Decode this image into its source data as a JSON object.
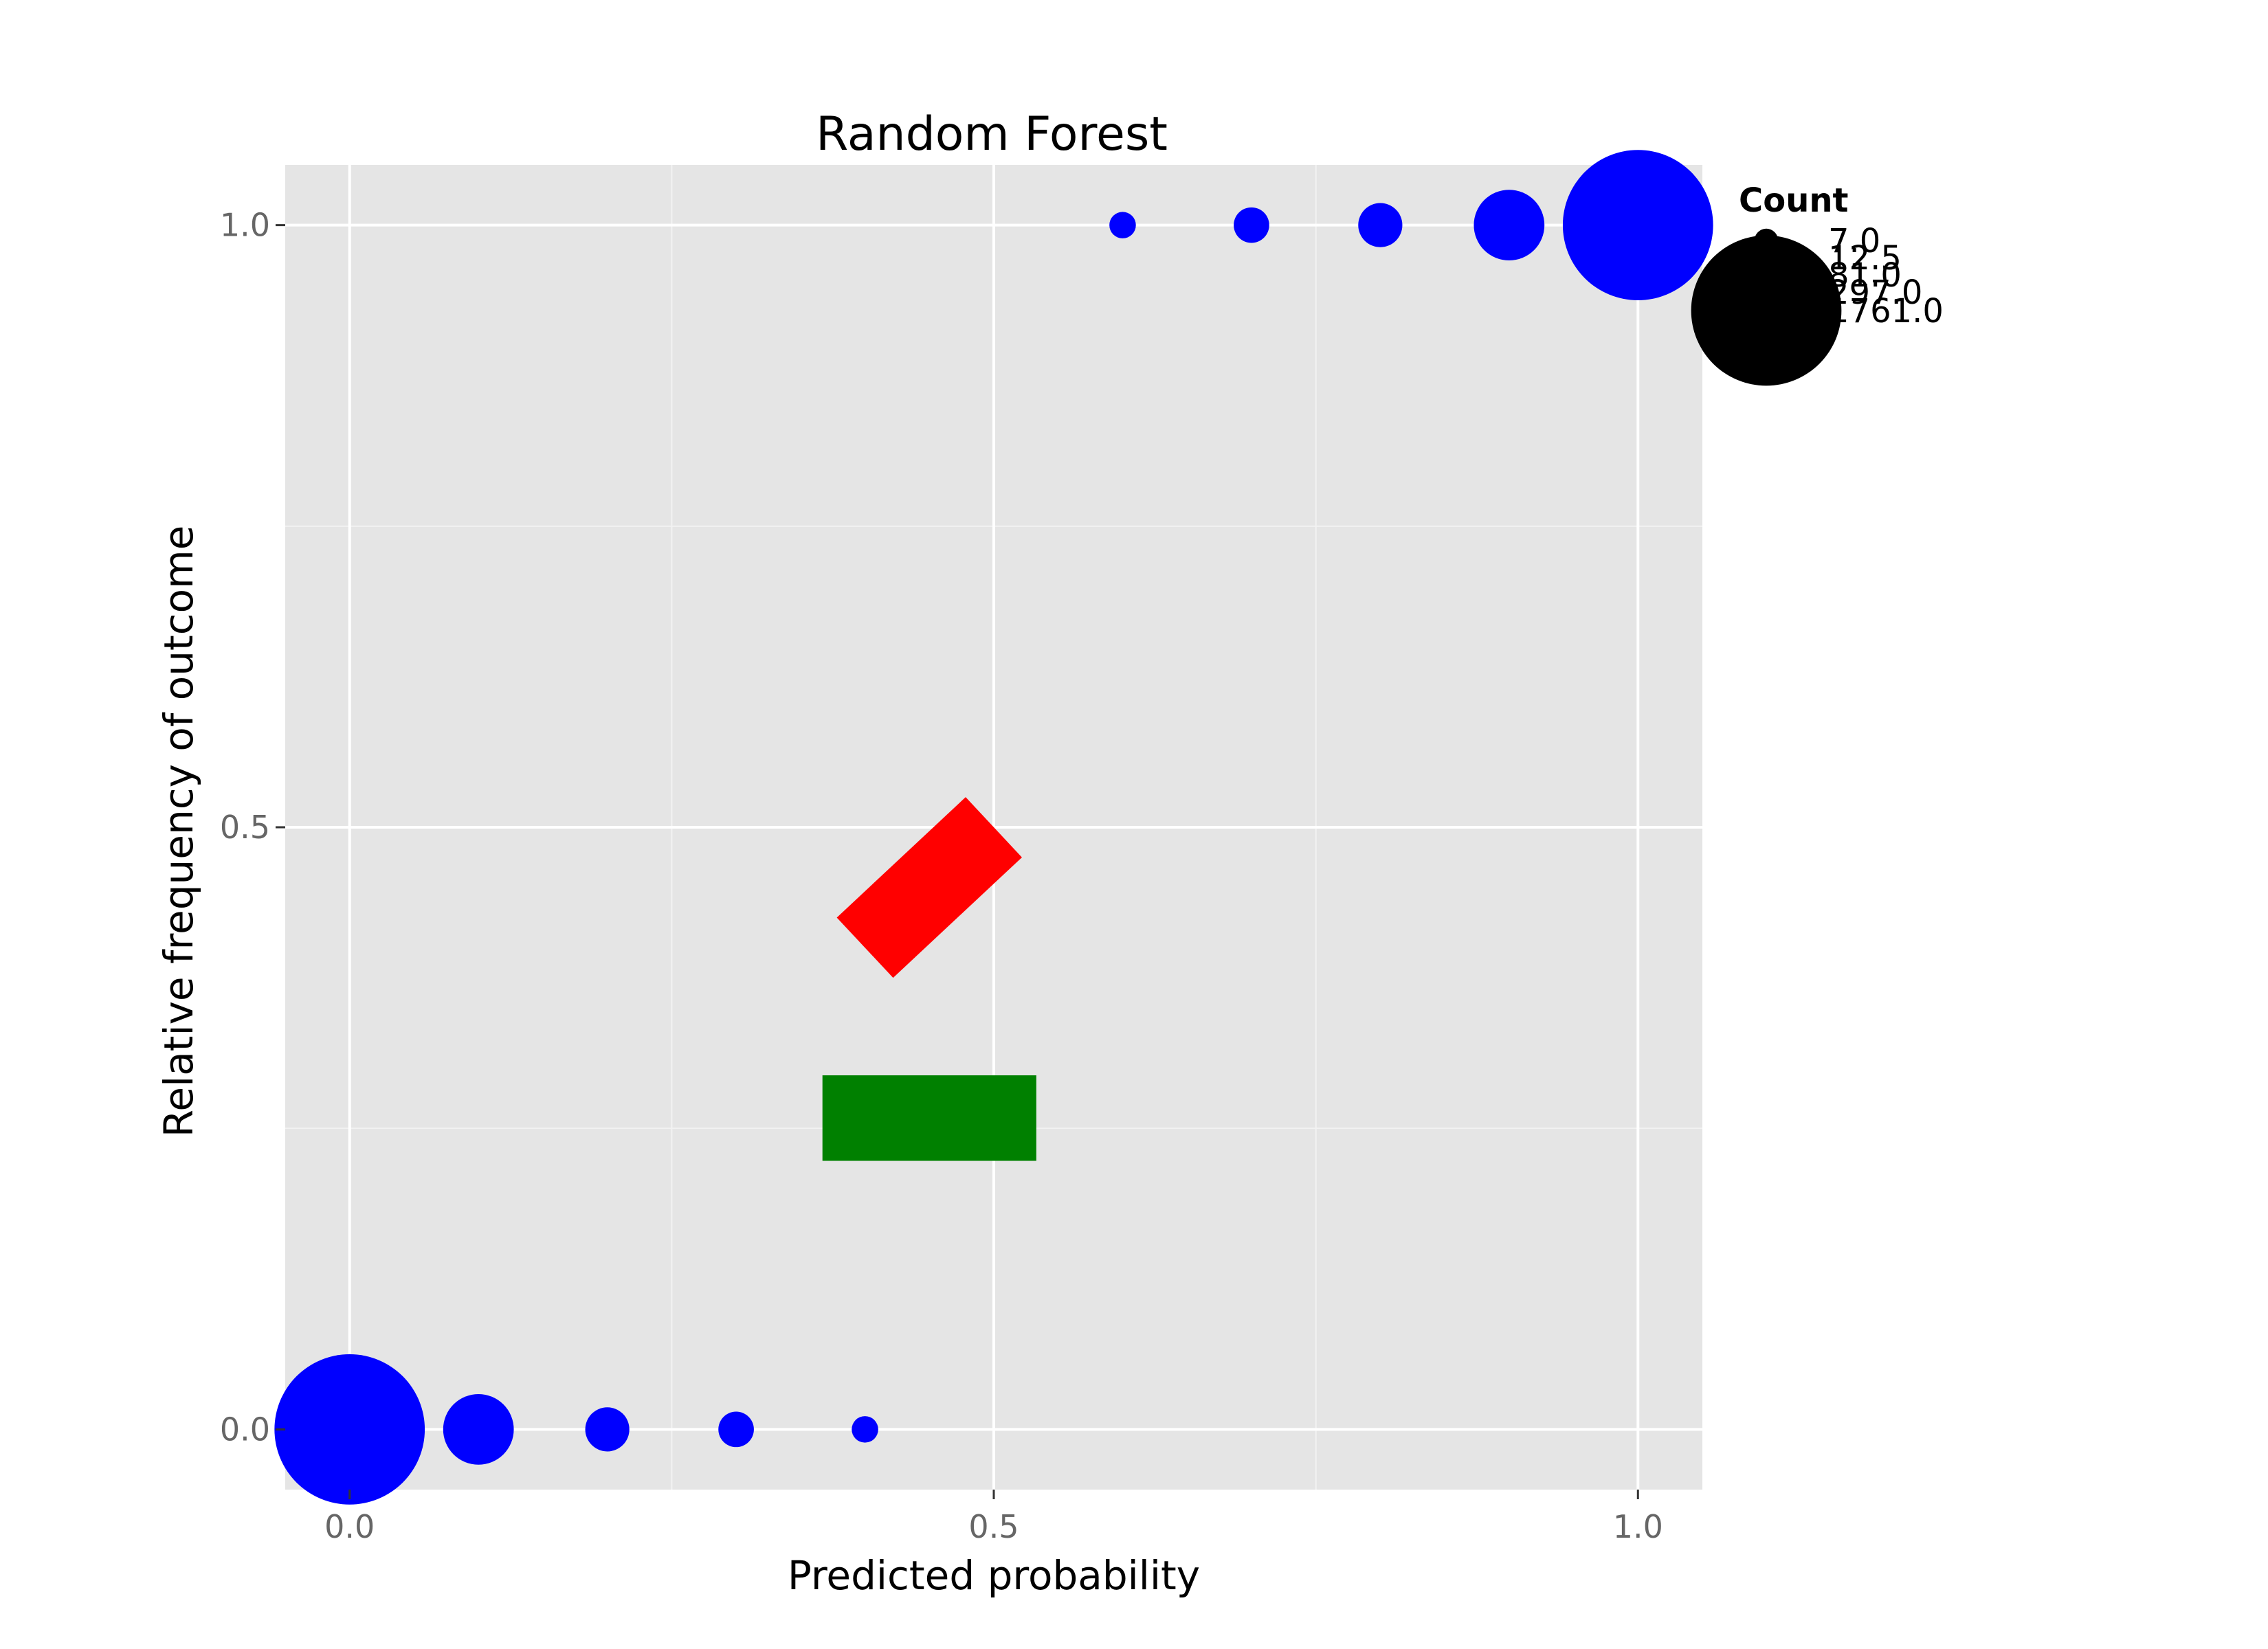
{
  "chart_data": {
    "type": "scatter",
    "title": "Random Forest",
    "xlabel": "Predicted probability",
    "ylabel": "Relative frequency of outcome",
    "xlim": [
      -0.05,
      1.05
    ],
    "ylim": [
      -0.05,
      1.05
    ],
    "x_ticks": [
      0.0,
      0.5,
      1.0
    ],
    "x_tick_labels": [
      "0.0",
      "0.5",
      "1.0"
    ],
    "y_ticks": [
      0.0,
      0.5,
      1.0
    ],
    "y_tick_labels": [
      "0.0",
      "0.5",
      "1.0"
    ],
    "x_minor_ticks": [
      0.25,
      0.75
    ],
    "y_minor_ticks": [
      0.25,
      0.75
    ],
    "grid": true,
    "background": "#e5e5e5",
    "point_color": "#0000ff",
    "points": [
      {
        "x": 0.0,
        "y": 0.0,
        "count": 1761
      },
      {
        "x": 0.1,
        "y": 0.0,
        "count": 297
      },
      {
        "x": 0.2,
        "y": 0.0,
        "count": 81
      },
      {
        "x": 0.3,
        "y": 0.0,
        "count": 40
      },
      {
        "x": 0.4,
        "y": 0.0,
        "count": 12.5
      },
      {
        "x": 0.6,
        "y": 1.0,
        "count": 12.5
      },
      {
        "x": 0.7,
        "y": 1.0,
        "count": 40
      },
      {
        "x": 0.8,
        "y": 1.0,
        "count": 81
      },
      {
        "x": 0.9,
        "y": 1.0,
        "count": 297
      },
      {
        "x": 1.0,
        "y": 1.0,
        "count": 1761
      }
    ],
    "shapes": [
      {
        "kind": "rotated-rect",
        "color": "#ff0000",
        "x_start": 0.4,
        "y_start": 0.4,
        "x_end": 0.5,
        "y_end": 0.5
      },
      {
        "kind": "rect",
        "color": "#008000",
        "x_min": 0.367,
        "x_max": 0.533,
        "y_min": 0.223,
        "y_max": 0.294
      }
    ],
    "legend": {
      "title": "Count",
      "placement": "right",
      "entries": [
        {
          "label": "7.0",
          "count": 7
        },
        {
          "label": "12.5",
          "count": 12.5
        },
        {
          "label": "81.0",
          "count": 81
        },
        {
          "label": "297.0",
          "count": 297
        },
        {
          "label": "1761.0",
          "count": 1761
        }
      ]
    }
  }
}
